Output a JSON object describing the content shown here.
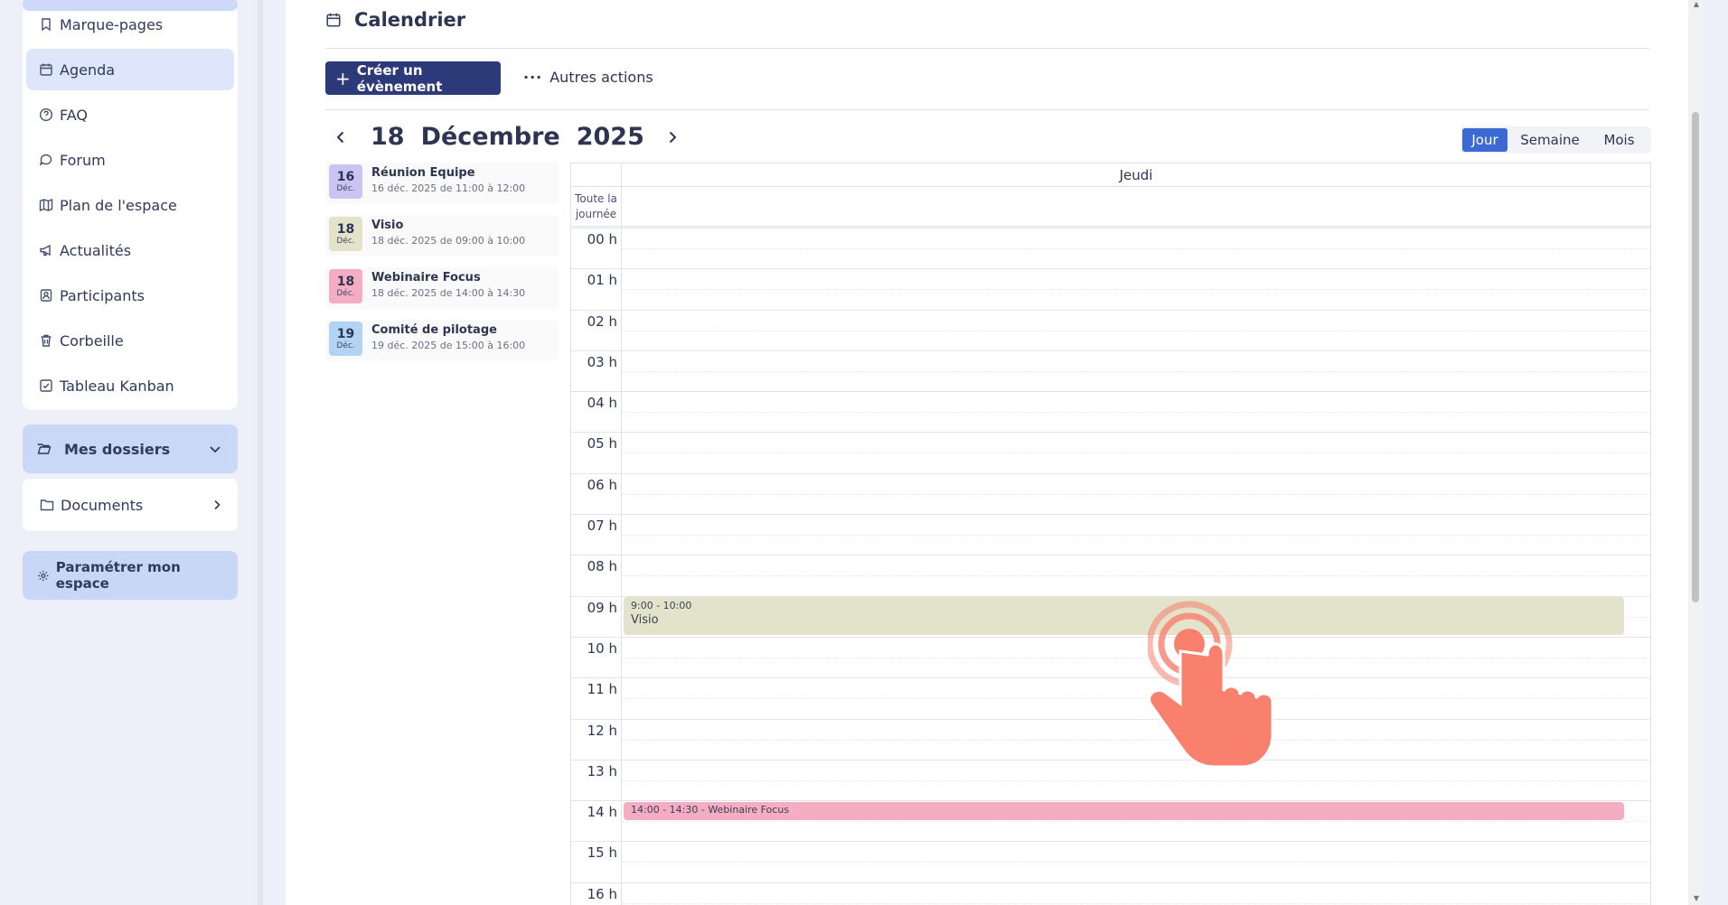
{
  "sidebar": {
    "items": [
      {
        "label": "Marque-pages",
        "icon": "bookmark-icon",
        "active": false
      },
      {
        "label": "Agenda",
        "icon": "calendar-icon",
        "active": true
      },
      {
        "label": "FAQ",
        "icon": "help-circle-icon",
        "active": false
      },
      {
        "label": "Forum",
        "icon": "chat-icon",
        "active": false
      },
      {
        "label": "Plan de l'espace",
        "icon": "map-icon",
        "active": false
      },
      {
        "label": "Actualités",
        "icon": "megaphone-icon",
        "active": false
      },
      {
        "label": "Participants",
        "icon": "contact-icon",
        "active": false
      },
      {
        "label": "Corbeille",
        "icon": "trash-icon",
        "active": false
      },
      {
        "label": "Tableau Kanban",
        "icon": "checkbox-icon",
        "active": false
      }
    ],
    "folders_label": "Mes dossiers",
    "documents_label": "Documents",
    "settings_label": "Paramétrer mon espace"
  },
  "header": {
    "title": "Calendrier",
    "create_label": "Créer un évènement",
    "more_label": "Autres actions"
  },
  "date_nav": {
    "day": "18",
    "month": "Décembre",
    "year": "2025"
  },
  "views": {
    "day": "Jour",
    "week": "Semaine",
    "month": "Mois",
    "active": "Jour"
  },
  "events": [
    {
      "day": "16",
      "month": "Déc.",
      "title": "Réunion Equipe",
      "when": "16 déc. 2025 de 11:00 à 12:00",
      "color": "#c9c4f3"
    },
    {
      "day": "18",
      "month": "Déc.",
      "title": "Visio",
      "when": "18 déc. 2025 de 09:00 à 10:00",
      "color": "#e3e3cb"
    },
    {
      "day": "18",
      "month": "Déc.",
      "title": "Webinaire Focus",
      "when": "18 déc. 2025 de 14:00 à 14:30",
      "color": "#f5adc3"
    },
    {
      "day": "19",
      "month": "Déc.",
      "title": "Comité de pilotage",
      "when": "19 déc. 2025 de 15:00 à 16:00",
      "color": "#b3d3f5"
    }
  ],
  "grid": {
    "day_name": "Jeudi",
    "allday_label": "Toute la journée",
    "hours": [
      "00 h",
      "01 h",
      "02 h",
      "03 h",
      "04 h",
      "05 h",
      "06 h",
      "07 h",
      "08 h",
      "09 h",
      "10 h",
      "11 h",
      "12 h",
      "13 h",
      "14 h",
      "15 h",
      "16 h"
    ],
    "blocks": {
      "visio_time": "9:00 - 10:00",
      "visio_title": "Visio",
      "webinaire": "14:00 - 14:30 - Webinaire Focus"
    }
  },
  "colors": {
    "primary": "#2c3a7a",
    "accent": "#3d6ad2",
    "active_nav": "#dde6fb",
    "pointer": "#f8806d"
  }
}
